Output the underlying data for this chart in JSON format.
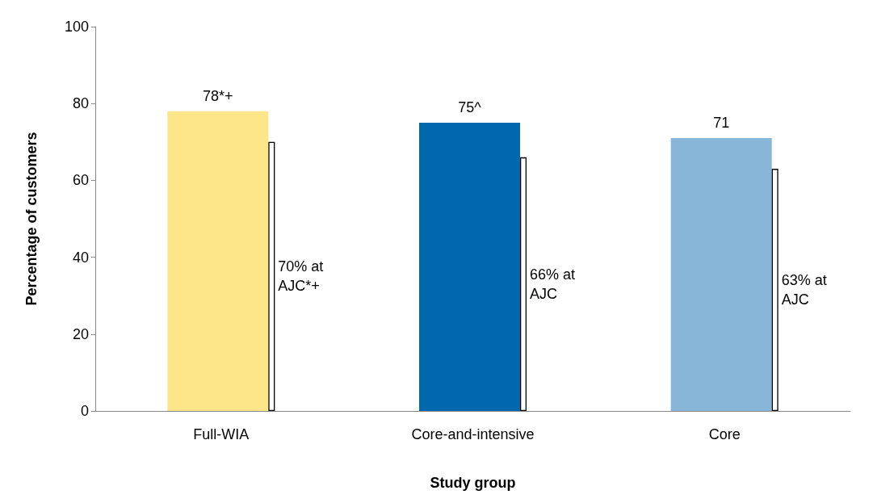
{
  "chart_data": {
    "type": "bar",
    "xlabel": "Study group",
    "ylabel": "Percentage of customers",
    "categories": [
      "Full-WIA",
      "Core-and-intensive",
      "Core"
    ],
    "series": [
      {
        "values": [
          78,
          75,
          71
        ],
        "colors": [
          "#fde58a",
          "#0068ad",
          "#87b6d8"
        ],
        "value_labels": [
          "78*+",
          "75^",
          "71"
        ]
      },
      {
        "color": "#000000",
        "values": [
          70,
          66,
          63
        ]
      }
    ],
    "annotations": [
      "70% at AJC*+",
      "66% at AJC",
      "63% at AJC"
    ],
    "ylim": [
      0,
      100
    ],
    "yticks": [
      0,
      20,
      40,
      60,
      80,
      100
    ],
    "grid": false
  }
}
